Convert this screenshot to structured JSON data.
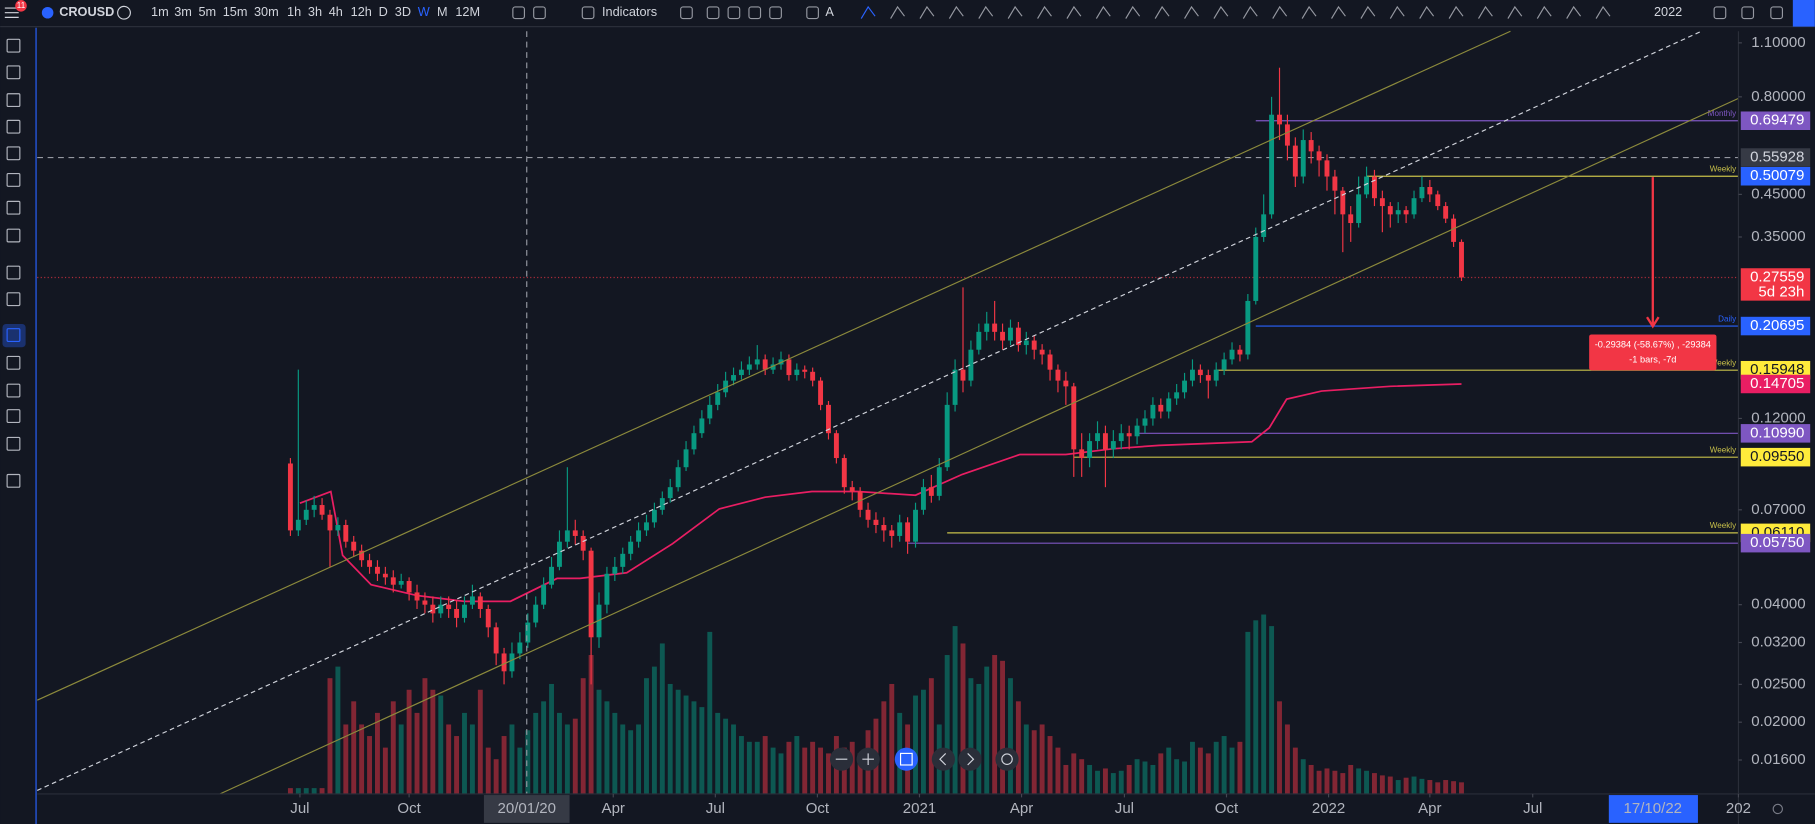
{
  "toolbar": {
    "symbol": "CROUSD",
    "badge": "11",
    "timeframes": [
      "1m",
      "3m",
      "5m",
      "15m",
      "30m",
      "1h",
      "3h",
      "4h",
      "12h",
      "D",
      "3D",
      "W",
      "M",
      "12M"
    ],
    "active": "W",
    "partial": "A",
    "indicators": "Indicators",
    "year": "2022"
  },
  "chart_data": {
    "type": "candlestick",
    "name": "CROUSD",
    "log": true,
    "grid": false,
    "up_color": "#089981",
    "down_color": "#f23645",
    "xlim": [
      -32,
      183
    ],
    "ylim": [
      0.0131,
      1.178
    ],
    "yticks": [
      {
        "value": 1.1,
        "label": "1.10000"
      },
      {
        "value": 0.8,
        "label": "0.80000"
      },
      {
        "value": 0.45,
        "label": "0.45000"
      },
      {
        "value": 0.35,
        "label": "0.35000"
      },
      {
        "value": 0.12,
        "label": "0.12000"
      },
      {
        "value": 0.07,
        "label": "0.07000"
      },
      {
        "value": 0.04,
        "label": "0.04000"
      },
      {
        "value": 0.032,
        "label": "0.03200"
      },
      {
        "value": 0.025,
        "label": "0.02500"
      },
      {
        "value": 0.02,
        "label": "0.02000"
      },
      {
        "value": 0.016,
        "label": "0.01600"
      }
    ],
    "xticks": [
      {
        "value": 1.2,
        "label": "Jul"
      },
      {
        "value": 15,
        "label": "Oct"
      },
      {
        "value": 40.8,
        "label": "Apr"
      },
      {
        "value": 53.7,
        "label": "Jul"
      },
      {
        "value": 66.6,
        "label": "Oct"
      },
      {
        "value": 79.5,
        "label": "2021"
      },
      {
        "value": 92.4,
        "label": "Apr"
      },
      {
        "value": 105.4,
        "label": "Jul"
      },
      {
        "value": 118.3,
        "label": "Oct"
      },
      {
        "value": 131.2,
        "label": "2022"
      },
      {
        "value": 144,
        "label": "Apr"
      },
      {
        "value": 157,
        "label": "Jul"
      },
      {
        "value": 183,
        "label": "202"
      }
    ],
    "candles": [
      [
        0.092,
        0.095,
        0.06,
        0.062
      ],
      [
        0.062,
        0.16,
        0.06,
        0.066
      ],
      [
        0.066,
        0.074,
        0.064,
        0.07
      ],
      [
        0.07,
        0.076,
        0.067,
        0.072
      ],
      [
        0.072,
        0.075,
        0.066,
        0.068
      ],
      [
        0.068,
        0.07,
        0.05,
        0.062
      ],
      [
        0.062,
        0.067,
        0.06,
        0.064
      ],
      [
        0.064,
        0.066,
        0.056,
        0.058
      ],
      [
        0.058,
        0.06,
        0.053,
        0.055
      ],
      [
        0.055,
        0.057,
        0.05,
        0.052
      ],
      [
        0.052,
        0.054,
        0.048,
        0.05
      ],
      [
        0.05,
        0.052,
        0.046,
        0.048
      ],
      [
        0.048,
        0.05,
        0.045,
        0.047
      ],
      [
        0.047,
        0.049,
        0.043,
        0.045
      ],
      [
        0.045,
        0.048,
        0.044,
        0.046
      ],
      [
        0.046,
        0.047,
        0.041,
        0.043
      ],
      [
        0.043,
        0.045,
        0.039,
        0.041
      ],
      [
        0.041,
        0.043,
        0.038,
        0.04
      ],
      [
        0.04,
        0.042,
        0.036,
        0.038
      ],
      [
        0.038,
        0.042,
        0.037,
        0.04
      ],
      [
        0.04,
        0.042,
        0.037,
        0.039
      ],
      [
        0.039,
        0.041,
        0.035,
        0.037
      ],
      [
        0.037,
        0.042,
        0.036,
        0.04
      ],
      [
        0.04,
        0.045,
        0.039,
        0.042
      ],
      [
        0.042,
        0.043,
        0.037,
        0.039
      ],
      [
        0.039,
        0.04,
        0.033,
        0.035
      ],
      [
        0.035,
        0.036,
        0.028,
        0.03
      ],
      [
        0.03,
        0.031,
        0.025,
        0.027
      ],
      [
        0.027,
        0.032,
        0.026,
        0.03
      ],
      [
        0.03,
        0.034,
        0.029,
        0.032
      ],
      [
        0.032,
        0.038,
        0.031,
        0.036
      ],
      [
        0.036,
        0.042,
        0.035,
        0.04
      ],
      [
        0.04,
        0.047,
        0.039,
        0.045
      ],
      [
        0.045,
        0.053,
        0.044,
        0.05
      ],
      [
        0.05,
        0.062,
        0.049,
        0.058
      ],
      [
        0.058,
        0.09,
        0.056,
        0.062
      ],
      [
        0.062,
        0.066,
        0.057,
        0.06
      ],
      [
        0.06,
        0.062,
        0.052,
        0.055
      ],
      [
        0.055,
        0.056,
        0.025,
        0.033
      ],
      [
        0.033,
        0.043,
        0.031,
        0.04
      ],
      [
        0.04,
        0.05,
        0.038,
        0.048
      ],
      [
        0.048,
        0.053,
        0.046,
        0.05
      ],
      [
        0.05,
        0.056,
        0.048,
        0.054
      ],
      [
        0.054,
        0.06,
        0.052,
        0.058
      ],
      [
        0.058,
        0.065,
        0.056,
        0.062
      ],
      [
        0.062,
        0.068,
        0.06,
        0.065
      ],
      [
        0.065,
        0.073,
        0.063,
        0.07
      ],
      [
        0.07,
        0.078,
        0.068,
        0.075
      ],
      [
        0.075,
        0.084,
        0.073,
        0.08
      ],
      [
        0.08,
        0.094,
        0.078,
        0.09
      ],
      [
        0.09,
        0.105,
        0.088,
        0.1
      ],
      [
        0.1,
        0.115,
        0.097,
        0.11
      ],
      [
        0.11,
        0.126,
        0.107,
        0.12
      ],
      [
        0.12,
        0.137,
        0.116,
        0.13
      ],
      [
        0.13,
        0.147,
        0.126,
        0.14
      ],
      [
        0.14,
        0.158,
        0.136,
        0.15
      ],
      [
        0.15,
        0.162,
        0.146,
        0.155
      ],
      [
        0.155,
        0.168,
        0.151,
        0.16
      ],
      [
        0.16,
        0.173,
        0.155,
        0.165
      ],
      [
        0.165,
        0.185,
        0.16,
        0.17
      ],
      [
        0.17,
        0.175,
        0.155,
        0.16
      ],
      [
        0.16,
        0.172,
        0.156,
        0.165
      ],
      [
        0.165,
        0.178,
        0.16,
        0.17
      ],
      [
        0.17,
        0.175,
        0.15,
        0.155
      ],
      [
        0.155,
        0.166,
        0.15,
        0.16
      ],
      [
        0.16,
        0.164,
        0.152,
        0.158
      ],
      [
        0.158,
        0.162,
        0.145,
        0.15
      ],
      [
        0.15,
        0.153,
        0.126,
        0.13
      ],
      [
        0.13,
        0.133,
        0.106,
        0.11
      ],
      [
        0.11,
        0.112,
        0.092,
        0.095
      ],
      [
        0.095,
        0.097,
        0.077,
        0.08
      ],
      [
        0.08,
        0.083,
        0.074,
        0.078
      ],
      [
        0.078,
        0.08,
        0.067,
        0.07
      ],
      [
        0.07,
        0.073,
        0.063,
        0.066
      ],
      [
        0.066,
        0.069,
        0.061,
        0.064
      ],
      [
        0.064,
        0.067,
        0.058,
        0.062
      ],
      [
        0.062,
        0.064,
        0.056,
        0.06
      ],
      [
        0.06,
        0.068,
        0.058,
        0.065
      ],
      [
        0.065,
        0.067,
        0.054,
        0.058
      ],
      [
        0.058,
        0.073,
        0.056,
        0.07
      ],
      [
        0.07,
        0.084,
        0.068,
        0.08
      ],
      [
        0.08,
        0.086,
        0.073,
        0.076
      ],
      [
        0.076,
        0.095,
        0.074,
        0.09
      ],
      [
        0.09,
        0.14,
        0.088,
        0.13
      ],
      [
        0.13,
        0.17,
        0.125,
        0.16
      ],
      [
        0.16,
        0.26,
        0.14,
        0.15
      ],
      [
        0.15,
        0.19,
        0.145,
        0.18
      ],
      [
        0.18,
        0.21,
        0.175,
        0.2
      ],
      [
        0.2,
        0.225,
        0.19,
        0.21
      ],
      [
        0.21,
        0.24,
        0.19,
        0.2
      ],
      [
        0.2,
        0.21,
        0.18,
        0.19
      ],
      [
        0.19,
        0.215,
        0.185,
        0.205
      ],
      [
        0.205,
        0.212,
        0.178,
        0.185
      ],
      [
        0.185,
        0.2,
        0.175,
        0.19
      ],
      [
        0.19,
        0.196,
        0.17,
        0.18
      ],
      [
        0.18,
        0.186,
        0.165,
        0.175
      ],
      [
        0.175,
        0.18,
        0.15,
        0.16
      ],
      [
        0.16,
        0.165,
        0.14,
        0.15
      ],
      [
        0.15,
        0.158,
        0.13,
        0.145
      ],
      [
        0.145,
        0.148,
        0.085,
        0.1
      ],
      [
        0.1,
        0.11,
        0.085,
        0.095
      ],
      [
        0.095,
        0.11,
        0.09,
        0.105
      ],
      [
        0.105,
        0.118,
        0.1,
        0.11
      ],
      [
        0.11,
        0.115,
        0.08,
        0.1
      ],
      [
        0.1,
        0.112,
        0.095,
        0.105
      ],
      [
        0.105,
        0.116,
        0.1,
        0.11
      ],
      [
        0.11,
        0.115,
        0.1,
        0.108
      ],
      [
        0.108,
        0.12,
        0.103,
        0.115
      ],
      [
        0.115,
        0.126,
        0.11,
        0.12
      ],
      [
        0.12,
        0.136,
        0.115,
        0.13
      ],
      [
        0.13,
        0.135,
        0.12,
        0.125
      ],
      [
        0.125,
        0.14,
        0.12,
        0.135
      ],
      [
        0.135,
        0.147,
        0.13,
        0.14
      ],
      [
        0.14,
        0.157,
        0.135,
        0.15
      ],
      [
        0.15,
        0.17,
        0.145,
        0.16
      ],
      [
        0.16,
        0.165,
        0.148,
        0.155
      ],
      [
        0.155,
        0.16,
        0.135,
        0.15
      ],
      [
        0.15,
        0.167,
        0.145,
        0.16
      ],
      [
        0.16,
        0.177,
        0.155,
        0.17
      ],
      [
        0.17,
        0.188,
        0.165,
        0.18
      ],
      [
        0.18,
        0.185,
        0.168,
        0.175
      ],
      [
        0.175,
        0.25,
        0.17,
        0.24
      ],
      [
        0.24,
        0.37,
        0.235,
        0.35
      ],
      [
        0.35,
        0.45,
        0.34,
        0.4
      ],
      [
        0.4,
        0.8,
        0.39,
        0.72
      ],
      [
        0.72,
        0.95,
        0.62,
        0.68
      ],
      [
        0.68,
        0.72,
        0.55,
        0.6
      ],
      [
        0.6,
        0.63,
        0.47,
        0.5
      ],
      [
        0.5,
        0.66,
        0.48,
        0.62
      ],
      [
        0.62,
        0.65,
        0.54,
        0.58
      ],
      [
        0.58,
        0.6,
        0.5,
        0.55
      ],
      [
        0.55,
        0.57,
        0.46,
        0.5
      ],
      [
        0.5,
        0.52,
        0.4,
        0.46
      ],
      [
        0.46,
        0.47,
        0.32,
        0.4
      ],
      [
        0.4,
        0.42,
        0.34,
        0.38
      ],
      [
        0.38,
        0.5,
        0.37,
        0.45
      ],
      [
        0.45,
        0.53,
        0.44,
        0.5
      ],
      [
        0.5,
        0.52,
        0.42,
        0.44
      ],
      [
        0.44,
        0.46,
        0.36,
        0.42
      ],
      [
        0.42,
        0.43,
        0.37,
        0.4
      ],
      [
        0.4,
        0.43,
        0.38,
        0.41
      ],
      [
        0.41,
        0.42,
        0.38,
        0.4
      ],
      [
        0.4,
        0.46,
        0.39,
        0.44
      ],
      [
        0.44,
        0.5,
        0.43,
        0.47
      ],
      [
        0.47,
        0.49,
        0.43,
        0.45
      ],
      [
        0.45,
        0.46,
        0.41,
        0.42
      ],
      [
        0.42,
        0.43,
        0.38,
        0.39
      ],
      [
        0.39,
        0.4,
        0.33,
        0.34
      ],
      [
        0.34,
        0.345,
        0.27,
        0.27559
      ]
    ],
    "volume": [
      5,
      5,
      5,
      5,
      5,
      100,
      110,
      60,
      80,
      60,
      50,
      70,
      40,
      80,
      60,
      90,
      70,
      100,
      90,
      85,
      60,
      50,
      70,
      60,
      90,
      40,
      30,
      50,
      60,
      40,
      55,
      70,
      80,
      95,
      70,
      60,
      65,
      100,
      120,
      90,
      80,
      70,
      60,
      55,
      60,
      100,
      110,
      130,
      95,
      90,
      85,
      80,
      75,
      140,
      70,
      65,
      60,
      50,
      45,
      45,
      50,
      40,
      35,
      45,
      50,
      40,
      45,
      40,
      35,
      50,
      40,
      45,
      35,
      55,
      65,
      80,
      95,
      70,
      60,
      85,
      90,
      100,
      60,
      120,
      145,
      130,
      100,
      95,
      110,
      120,
      115,
      100,
      80,
      60,
      55,
      60,
      50,
      40,
      25,
      35,
      30,
      25,
      20,
      22,
      18,
      20,
      25,
      30,
      28,
      25,
      35,
      40,
      30,
      28,
      45,
      40,
      35,
      45,
      50,
      40,
      45,
      140,
      150,
      155,
      145,
      80,
      60,
      40,
      30,
      25,
      20,
      22,
      20,
      18,
      25,
      22,
      20,
      18,
      16,
      15,
      12,
      14,
      15,
      13,
      12,
      10,
      12,
      11,
      10
    ],
    "countdown": "5d 23h",
    "ma": {
      "color": "#e91e63",
      "x": [
        1.2,
        5.1,
        6.6,
        10.2,
        16,
        22,
        27.8,
        33.7,
        36.6,
        42.5,
        48.3,
        54.2,
        60,
        65.9,
        71.7,
        79,
        84.9,
        92.2,
        98,
        103.9,
        109.8,
        121.5,
        123.7,
        125.9,
        130.3,
        139,
        148
      ],
      "values": [
        0.0728,
        0.078,
        0.0535,
        0.045,
        0.0422,
        0.0408,
        0.0408,
        0.0467,
        0.0467,
        0.0483,
        0.0573,
        0.0704,
        0.0754,
        0.078,
        0.078,
        0.0763,
        0.0863,
        0.097,
        0.097,
        0.1003,
        0.1024,
        0.1046,
        0.1135,
        0.1345,
        0.141,
        0.145,
        0.14705
      ]
    },
    "levels": [
      {
        "value": 0.69479,
        "label": "0.69479",
        "tag": "Monthly",
        "line_color": "#7e57c2",
        "box_color": "#7e57c2",
        "from": 122
      },
      {
        "value": 0.50079,
        "label": "0.50079",
        "tag": "Weekly",
        "line_color": "#c8c04a",
        "box_color": "#2962ff",
        "from": 136
      },
      {
        "value": 0.20695,
        "label": "0.20695",
        "tag": "Daily",
        "line_color": "#2962ff",
        "box_color": "#2962ff",
        "from": 122
      },
      {
        "value": 0.15948,
        "label": "0.15948",
        "tag": "Weekly",
        "line_color": "#c8c04a",
        "box_color": "#ffeb3b",
        "from": 117
      },
      {
        "value": 0.1099,
        "label": "0.10990",
        "line_color": "#7e57c2",
        "box_color": "#7e57c2",
        "from": 107
      },
      {
        "value": 0.0955,
        "label": "0.09550",
        "tag": "Weekly",
        "line_color": "#c8c04a",
        "box_color": "#ffeb3b",
        "from": 99
      },
      {
        "value": 0.0611,
        "label": "0.06110",
        "tag": "Weekly",
        "line_color": "#c8c04a",
        "box_color": "#ffeb3b",
        "from": 83
      },
      {
        "value": 0.0575,
        "label": "0.05750",
        "line_color": "#7e57c2",
        "box_color": "#7e57c2",
        "from": 78
      }
    ],
    "crosshair": {
      "price": 0.55928,
      "date": "20/01/20"
    },
    "measure": {
      "line1": "-0.29384 (-58.67%) , -29384",
      "line2": "-1 bars, -7d",
      "date": "17/10/22"
    }
  }
}
